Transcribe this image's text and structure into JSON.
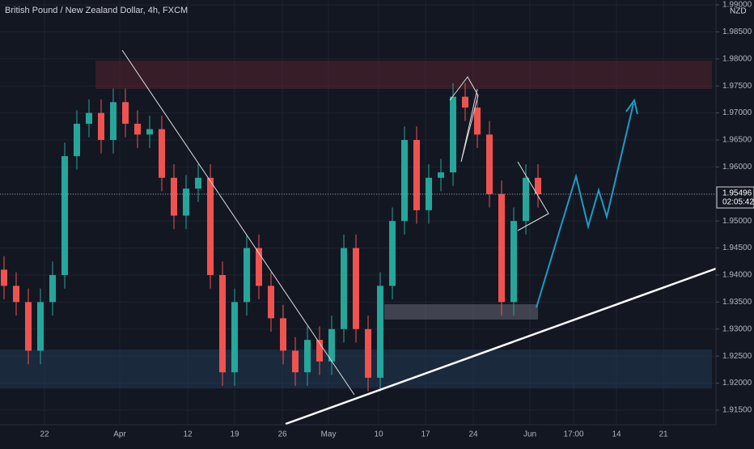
{
  "chart_data": {
    "type": "candlestick",
    "title": "British Pound / New Zealand Dollar, 4h, FXCM",
    "currency": "NZD",
    "open": [
      1.941,
      1.938,
      1.935,
      1.926,
      1.935,
      1.94,
      1.962,
      1.968,
      1.97,
      1.965,
      1.972,
      1.968,
      1.966,
      1.967,
      1.958,
      1.951,
      1.956,
      1.958,
      1.94,
      1.922,
      1.935,
      1.945,
      1.938,
      1.932,
      1.926,
      1.922,
      1.928,
      1.924,
      1.93,
      1.945,
      1.93,
      1.921,
      1.938,
      1.95,
      1.965,
      1.952,
      1.958,
      1.959,
      1.973,
      1.971,
      1.966,
      1.955,
      1.935,
      1.95,
      1.958
    ],
    "high": [
      1.9435,
      1.9405,
      1.9375,
      1.9375,
      1.9425,
      1.9645,
      1.9705,
      1.9725,
      1.9725,
      1.9745,
      1.9745,
      1.9705,
      1.9695,
      1.9695,
      1.9605,
      1.9585,
      1.9605,
      1.9605,
      1.9425,
      1.9375,
      1.9475,
      1.9475,
      1.9405,
      1.9345,
      1.9285,
      1.9305,
      1.9305,
      1.9325,
      1.9475,
      1.9475,
      1.9325,
      1.9405,
      1.9525,
      1.9675,
      1.9675,
      1.9605,
      1.9615,
      1.9755,
      1.9755,
      1.9735,
      1.9685,
      1.9575,
      1.9525,
      1.9605,
      1.9605
    ],
    "low": [
      1.9355,
      1.9325,
      1.9235,
      1.9235,
      1.9325,
      1.9375,
      1.9595,
      1.9655,
      1.9625,
      1.9625,
      1.9655,
      1.9635,
      1.9635,
      1.9555,
      1.9485,
      1.9485,
      1.9535,
      1.9375,
      1.9195,
      1.9195,
      1.9325,
      1.9355,
      1.9295,
      1.9235,
      1.9195,
      1.9195,
      1.9215,
      1.9215,
      1.9275,
      1.9275,
      1.9185,
      1.9185,
      1.9355,
      1.9475,
      1.9495,
      1.9495,
      1.9555,
      1.9565,
      1.9685,
      1.9635,
      1.9525,
      1.9325,
      1.9325,
      1.9475,
      1.9525
    ],
    "close": [
      1.938,
      1.935,
      1.926,
      1.935,
      1.94,
      1.962,
      1.968,
      1.97,
      1.965,
      1.972,
      1.968,
      1.966,
      1.967,
      1.958,
      1.951,
      1.956,
      1.958,
      1.94,
      1.922,
      1.935,
      1.945,
      1.938,
      1.932,
      1.926,
      1.922,
      1.928,
      1.924,
      1.93,
      1.945,
      1.93,
      1.921,
      1.938,
      1.95,
      1.965,
      1.952,
      1.958,
      1.959,
      1.973,
      1.971,
      1.966,
      1.955,
      1.935,
      1.95,
      1.958,
      1.95496
    ],
    "up_color": "#26a69a",
    "down_color": "#ef5350",
    "last_price": 1.95496,
    "countdown": "02:05:42",
    "ylim": [
      1.9123,
      1.9909
    ],
    "yticks": [
      {
        "value": 1.915,
        "label": "1.91500"
      },
      {
        "value": 1.92,
        "label": "1.92000"
      },
      {
        "value": 1.925,
        "label": "1.92500"
      },
      {
        "value": 1.93,
        "label": "1.93000"
      },
      {
        "value": 1.935,
        "label": "1.93500"
      },
      {
        "value": 1.94,
        "label": "1.94000"
      },
      {
        "value": 1.945,
        "label": "1.94500"
      },
      {
        "value": 1.95,
        "label": "1.95000"
      },
      {
        "value": 1.955,
        "label": "1.95500"
      },
      {
        "value": 1.96,
        "label": "1.96000"
      },
      {
        "value": 1.965,
        "label": "1.96500"
      },
      {
        "value": 1.97,
        "label": "1.97000"
      },
      {
        "value": 1.975,
        "label": "1.97500"
      },
      {
        "value": 1.98,
        "label": "1.98000"
      },
      {
        "value": 1.985,
        "label": "1.98500"
      },
      {
        "value": 1.99,
        "label": "1.99000"
      }
    ],
    "x_labels": [
      "22",
      "Apr",
      "12",
      "19",
      "26",
      "May",
      "10",
      "17",
      "24",
      "Jun",
      "17:00",
      "14",
      "21"
    ],
    "grid": true
  }
}
